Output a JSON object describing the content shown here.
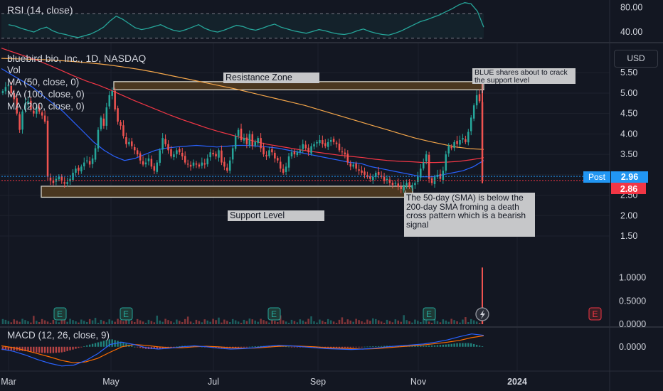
{
  "symbol_title": "bluebird bio, Inc., 1D, NASDAQ",
  "legend": {
    "vol": "Vol",
    "ma50": "MA (50, close, 0)",
    "ma100": "MA (100, close, 0)",
    "ma200": "MA (200, close, 0)",
    "rsi": "RSI (14, close)",
    "macd": "MACD (12, 26, close, 9)"
  },
  "currency_button": "USD",
  "annotations": {
    "resistance": "Resistance Zone",
    "support": "Support Level",
    "blue_note": "BLUE shares about to crack the support level",
    "death_cross": "The 50-day (SMA) is below the 200-day SMA froming a death cross pattern which is a bearish signal"
  },
  "badges": {
    "post_label": "Post",
    "post_price": "2.96",
    "last_price": "2.86"
  },
  "earnings_marker": "E",
  "colors": {
    "up": "#26a69a",
    "down": "#ef5350",
    "ma50": "#2962ff",
    "ma100": "#f23645",
    "ma200": "#f4a64a",
    "rsi": "#26a69a",
    "macd": "#2962ff",
    "signal": "#ff6d00",
    "zone_fill": "#4a3720",
    "zone_border": "#d6d3c8",
    "post": "#2196f3",
    "last": "#f23645"
  },
  "chart_data": [
    {
      "type": "line",
      "name_label": "RSI (14, close)",
      "y_ticks": [
        "80.00",
        "40.00"
      ],
      "ylim": [
        25,
        90
      ],
      "hlines": [
        70,
        30
      ],
      "values": [
        52,
        50,
        46,
        43,
        40,
        45,
        48,
        42,
        38,
        36,
        33,
        31,
        34,
        37,
        42,
        48,
        58,
        66,
        61,
        54,
        47,
        44,
        46,
        49,
        52,
        47,
        43,
        41,
        44,
        48,
        52,
        46,
        42,
        40,
        43,
        47,
        51,
        49,
        45,
        43,
        46,
        50,
        53,
        48,
        45,
        42,
        40,
        38,
        41,
        44,
        42,
        39,
        37,
        36,
        38,
        42,
        45,
        41,
        38,
        36,
        35,
        38,
        42,
        47,
        52,
        57,
        60,
        64,
        68,
        73,
        78,
        84,
        88,
        86,
        74,
        48
      ]
    },
    {
      "type": "candlestick",
      "title": "bluebird bio, Inc., 1D, NASDAQ",
      "y_ticks": [
        "5.50",
        "5.00",
        "4.50",
        "4.00",
        "3.50",
        "3.00",
        "2.50",
        "2.00",
        "1.50"
      ],
      "ylim": [
        1.1,
        6.2
      ],
      "x_ticks": [
        "Mar",
        "May",
        "Jul",
        "Sep",
        "Nov",
        "2024"
      ],
      "closes": [
        5.05,
        5.15,
        5.2,
        5.0,
        4.85,
        4.5,
        4.1,
        4.55,
        4.75,
        4.8,
        4.6,
        4.5,
        4.65,
        4.55,
        4.45,
        4.3,
        2.95,
        2.85,
        2.8,
        2.9,
        2.95,
        2.85,
        2.78,
        2.82,
        2.9,
        3.05,
        3.15,
        3.1,
        3.2,
        3.3,
        3.35,
        3.25,
        3.4,
        3.65,
        4.1,
        4.4,
        4.2,
        4.65,
        4.95,
        5.05,
        4.6,
        4.3,
        4.2,
        3.95,
        3.75,
        3.8,
        3.7,
        3.6,
        3.5,
        3.35,
        3.25,
        3.3,
        3.4,
        3.2,
        3.1,
        3.3,
        3.6,
        3.9,
        3.75,
        3.6,
        3.45,
        3.5,
        3.6,
        3.55,
        3.45,
        3.3,
        3.25,
        3.2,
        3.3,
        3.25,
        3.2,
        3.3,
        3.25,
        3.4,
        3.55,
        3.5,
        3.45,
        3.6,
        3.3,
        3.2,
        3.1,
        3.35,
        3.65,
        3.95,
        4.1,
        3.85,
        3.9,
        3.75,
        4.0,
        3.7,
        3.8,
        3.9,
        3.65,
        3.5,
        3.45,
        3.6,
        3.55,
        3.4,
        3.35,
        3.15,
        3.05,
        3.2,
        3.45,
        3.55,
        3.5,
        3.55,
        3.6,
        3.75,
        3.65,
        3.55,
        3.7,
        3.75,
        3.8,
        3.85,
        3.75,
        3.7,
        3.8,
        3.85,
        3.8,
        3.75,
        3.6,
        3.55,
        3.5,
        3.3,
        3.2,
        3.25,
        3.15,
        3.1,
        3.05,
        3.0,
        2.95,
        2.9,
        2.95,
        3.05,
        3.0,
        2.95,
        2.85,
        2.9,
        2.8,
        2.75,
        2.8,
        2.7,
        2.65,
        2.75,
        2.8,
        2.7,
        2.75,
        2.8,
        2.95,
        3.15,
        3.3,
        3.5,
        2.9,
        2.8,
        2.95,
        3.0,
        2.9,
        3.1,
        3.5,
        3.7,
        3.65,
        3.8,
        3.75,
        3.85,
        3.9,
        3.8,
        4.05,
        4.4,
        4.7,
        4.95,
        4.8,
        2.86
      ],
      "ma50": [
        5.6,
        5.45,
        5.3,
        5.15,
        4.95,
        4.75,
        4.55,
        4.3,
        4.05,
        3.8,
        3.6,
        3.45,
        3.35,
        3.4,
        3.5,
        3.6,
        3.65,
        3.68,
        3.7,
        3.72,
        3.7,
        3.68,
        3.7,
        3.72,
        3.72,
        3.7,
        3.68,
        3.65,
        3.6,
        3.55,
        3.5,
        3.45,
        3.4,
        3.35,
        3.3,
        3.28,
        3.2,
        3.15,
        3.1,
        3.05,
        3.0,
        2.95,
        2.95,
        3.0,
        3.05,
        3.1,
        3.2,
        3.35
      ],
      "ma100": [
        6.1,
        6.0,
        5.9,
        5.8,
        5.68,
        5.55,
        5.42,
        5.3,
        5.2,
        5.08,
        4.95,
        4.82,
        4.7,
        4.58,
        4.46,
        4.35,
        4.25,
        4.15,
        4.06,
        3.98,
        3.9,
        3.82,
        3.75,
        3.7,
        3.65,
        3.6,
        3.56,
        3.52,
        3.48,
        3.45,
        3.42,
        3.38,
        3.35,
        3.33,
        3.32,
        3.3,
        3.3,
        3.31,
        3.33,
        3.37,
        3.42
      ],
      "ma200": [
        5.85,
        5.84,
        5.83,
        5.82,
        5.8,
        5.78,
        5.75,
        5.72,
        5.68,
        5.63,
        5.58,
        5.52,
        5.45,
        5.38,
        5.31,
        5.24,
        5.17,
        5.1,
        5.02,
        4.94,
        4.86,
        4.78,
        4.7,
        4.6,
        4.5,
        4.4,
        4.3,
        4.2,
        4.1,
        4.0,
        3.9,
        3.82,
        3.75,
        3.68,
        3.64,
        3.62
      ],
      "resistance_zone": [
        5.08,
        5.28
      ],
      "support_zone": [
        2.45,
        2.72
      ],
      "post_price": 2.96,
      "last_price": 2.86
    },
    {
      "type": "bar",
      "name_label": "Vol",
      "y_ticks": [
        "1.0000",
        "0.5000",
        "0.0000"
      ],
      "ylim": [
        0,
        1.5
      ],
      "spike_value": 1.22,
      "earnings_markers": [
        "E",
        "E",
        "E",
        "E",
        "E"
      ]
    },
    {
      "type": "line",
      "name_label": "MACD (12, 26, close, 9)",
      "y_ticks": [
        "0.0000"
      ],
      "ylim": [
        -0.5,
        0.4
      ],
      "macd": [
        -0.05,
        -0.1,
        -0.18,
        -0.28,
        -0.36,
        -0.42,
        -0.4,
        -0.3,
        -0.15,
        0.05,
        0.1,
        0.05,
        -0.02,
        -0.05,
        -0.03,
        0.0,
        0.02,
        0.0,
        -0.03,
        -0.05,
        -0.04,
        -0.02,
        0.01,
        0.03,
        0.02,
        0.0,
        -0.02,
        -0.04,
        -0.05,
        -0.06,
        -0.05,
        -0.03,
        0.0,
        0.02,
        0.04,
        0.06,
        0.1,
        0.15,
        0.22,
        0.28,
        0.25
      ],
      "signal": [
        0.02,
        -0.02,
        -0.08,
        -0.15,
        -0.22,
        -0.3,
        -0.35,
        -0.33,
        -0.25,
        -0.12,
        0.0,
        0.05,
        0.03,
        0.0,
        -0.02,
        -0.02,
        0.0,
        0.01,
        0.0,
        -0.02,
        -0.03,
        -0.03,
        -0.01,
        0.01,
        0.02,
        0.01,
        0.0,
        -0.02,
        -0.03,
        -0.04,
        -0.05,
        -0.04,
        -0.02,
        0.0,
        0.02,
        0.04,
        0.07,
        0.1,
        0.14,
        0.2,
        0.24
      ]
    }
  ]
}
